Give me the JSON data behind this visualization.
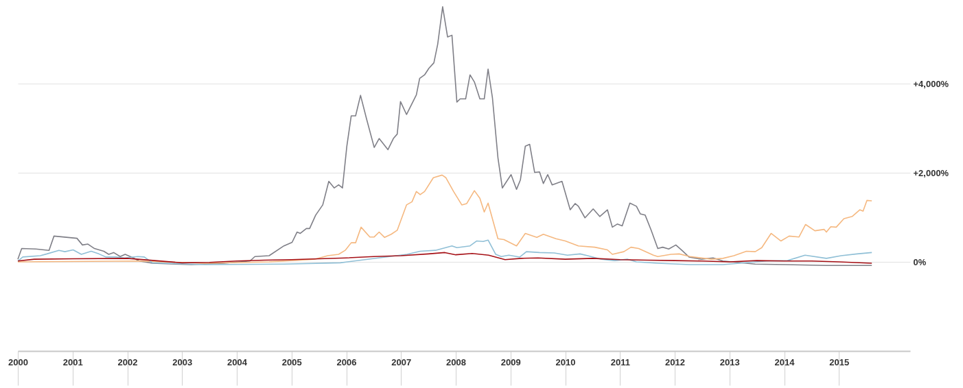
{
  "chart_data": {
    "type": "line",
    "xlim": [
      2000,
      2016.3
    ],
    "xticks": [
      2000,
      2001,
      2002,
      2003,
      2004,
      2005,
      2006,
      2007,
      2008,
      2009,
      2010,
      2011,
      2012,
      2013,
      2014,
      2015
    ],
    "ylim": [
      -2000,
      5850
    ],
    "yticks": [
      {
        "value": 0,
        "label": "0%"
      },
      {
        "value": 2000,
        "label": "+2,000%"
      },
      {
        "value": 4000,
        "label": "+4,000%"
      }
    ],
    "grid": "y",
    "marker": "none",
    "line_style": "solid",
    "series": [
      {
        "color": "#7f7f87",
        "x": [
          2000.0,
          2000.07,
          2000.33,
          2000.57,
          2000.66,
          2001.08,
          2001.18,
          2001.28,
          2001.4,
          2001.57,
          2001.66,
          2001.75,
          2001.87,
          2001.96,
          2002.11,
          2002.22,
          2002.46,
          2003.17,
          2003.76,
          2004.24,
          2004.33,
          2004.59,
          2004.86,
          2005.01,
          2005.1,
          2005.16,
          2005.27,
          2005.33,
          2005.44,
          2005.57,
          2005.68,
          2005.78,
          2005.86,
          2005.93,
          2006.01,
          2006.09,
          2006.17,
          2006.26,
          2006.37,
          2006.51,
          2006.6,
          2006.76,
          2006.86,
          2006.93,
          2006.99,
          2007.1,
          2007.28,
          2007.34,
          2007.43,
          2007.51,
          2007.6,
          2007.67,
          2007.76,
          2007.85,
          2007.93,
          2008.02,
          2008.08,
          2008.18,
          2008.26,
          2008.34,
          2008.44,
          2008.52,
          2008.59,
          2008.67,
          2008.77,
          2008.85,
          2009.01,
          2009.11,
          2009.18,
          2009.27,
          2009.35,
          2009.44,
          2009.53,
          2009.6,
          2009.68,
          2009.76,
          2009.94,
          2010.09,
          2010.18,
          2010.24,
          2010.36,
          2010.51,
          2010.63,
          2010.77,
          2010.86,
          2010.95,
          2011.04,
          2011.18,
          2011.3,
          2011.37,
          2011.46,
          2011.57,
          2011.69,
          2011.78,
          2011.89,
          2012.02,
          2012.13,
          2012.26,
          2012.49,
          2012.7,
          2012.88,
          2013.47,
          2014.02,
          2014.77,
          2015.6
        ],
        "values": [
          60,
          300,
          290,
          260,
          580,
          530,
          380,
          400,
          300,
          240,
          170,
          210,
          120,
          170,
          90,
          20,
          -30,
          -60,
          -30,
          20,
          120,
          140,
          360,
          440,
          670,
          640,
          750,
          750,
          1050,
          1280,
          1810,
          1660,
          1730,
          1660,
          2600,
          3280,
          3280,
          3740,
          3210,
          2570,
          2770,
          2520,
          2770,
          2870,
          3600,
          3310,
          3750,
          4120,
          4200,
          4350,
          4470,
          4890,
          5730,
          5050,
          5090,
          3590,
          3660,
          3660,
          4200,
          4040,
          3660,
          3660,
          4330,
          3680,
          2340,
          1660,
          1960,
          1630,
          1840,
          2600,
          2640,
          2010,
          2020,
          1760,
          1960,
          1730,
          1810,
          1170,
          1310,
          1250,
          990,
          1190,
          1020,
          1170,
          780,
          850,
          810,
          1320,
          1250,
          1080,
          1050,
          710,
          300,
          330,
          290,
          380,
          260,
          110,
          60,
          90,
          20,
          -50,
          -60,
          -80,
          -80
        ]
      },
      {
        "color": "#f5b880",
        "x": [
          2000.0,
          2002.22,
          2003.41,
          2004.59,
          2005.42,
          2005.66,
          2005.86,
          2005.98,
          2006.09,
          2006.17,
          2006.27,
          2006.43,
          2006.51,
          2006.6,
          2006.7,
          2006.82,
          2006.93,
          2007.1,
          2007.2,
          2007.28,
          2007.35,
          2007.43,
          2007.59,
          2007.75,
          2007.82,
          2007.96,
          2008.11,
          2008.2,
          2008.34,
          2008.44,
          2008.52,
          2008.59,
          2008.77,
          2008.88,
          2009.11,
          2009.27,
          2009.48,
          2009.6,
          2009.83,
          2010.0,
          2010.24,
          2010.54,
          2010.77,
          2010.86,
          2011.07,
          2011.2,
          2011.34,
          2011.61,
          2011.69,
          2011.93,
          2012.08,
          2012.28,
          2012.67,
          2012.88,
          2013.08,
          2013.31,
          2013.47,
          2013.59,
          2013.76,
          2013.94,
          2014.09,
          2014.27,
          2014.39,
          2014.56,
          2014.73,
          2014.77,
          2014.85,
          2014.95,
          2015.09,
          2015.24,
          2015.38,
          2015.44,
          2015.51,
          2015.6
        ],
        "values": [
          0,
          20,
          -30,
          0,
          60,
          140,
          170,
          260,
          430,
          430,
          780,
          560,
          560,
          670,
          550,
          620,
          710,
          1280,
          1350,
          1580,
          1510,
          1580,
          1890,
          1950,
          1890,
          1580,
          1280,
          1310,
          1600,
          1430,
          1120,
          1320,
          520,
          500,
          360,
          640,
          550,
          620,
          520,
          470,
          360,
          330,
          270,
          170,
          230,
          330,
          300,
          150,
          120,
          170,
          180,
          120,
          60,
          80,
          140,
          240,
          230,
          320,
          640,
          470,
          580,
          560,
          840,
          700,
          730,
          670,
          790,
          780,
          970,
          1020,
          1170,
          1140,
          1380,
          1370
        ]
      },
      {
        "color": "#8fbfd6",
        "x": [
          2000.0,
          2000.09,
          2000.41,
          2000.53,
          2000.75,
          2000.86,
          2001.01,
          2001.16,
          2001.34,
          2001.48,
          2001.61,
          2001.79,
          2001.95,
          2002.19,
          2002.31,
          2002.46,
          2003.41,
          2004.86,
          2005.89,
          2007.11,
          2007.35,
          2007.63,
          2007.93,
          2008.02,
          2008.26,
          2008.38,
          2008.5,
          2008.59,
          2008.73,
          2008.83,
          2008.97,
          2009.17,
          2009.29,
          2009.53,
          2009.8,
          2010.04,
          2010.27,
          2010.41,
          2010.66,
          2010.9,
          2011.14,
          2011.3,
          2011.69,
          2012.28,
          2012.88,
          2013.67,
          2014.06,
          2014.38,
          2014.77,
          2015.04,
          2015.33,
          2015.6
        ],
        "values": [
          20,
          110,
          140,
          180,
          260,
          230,
          270,
          170,
          240,
          180,
          110,
          110,
          90,
          120,
          110,
          -20,
          -60,
          -50,
          -20,
          170,
          240,
          260,
          360,
          320,
          360,
          470,
          460,
          490,
          170,
          120,
          150,
          110,
          230,
          210,
          200,
          150,
          180,
          140,
          60,
          30,
          60,
          0,
          -30,
          -60,
          -60,
          20,
          30,
          150,
          80,
          140,
          180,
          210
        ]
      },
      {
        "color": "#a50f15",
        "x": [
          2000.0,
          2000.3,
          2001.0,
          2002.0,
          2002.5,
          2003.0,
          2003.5,
          2004.0,
          2004.5,
          2005.0,
          2005.5,
          2006.0,
          2006.5,
          2007.0,
          2007.5,
          2007.8,
          2008.0,
          2008.3,
          2008.6,
          2008.9,
          2009.2,
          2009.5,
          2010.0,
          2010.5,
          2011.0,
          2011.5,
          2012.0,
          2012.5,
          2013.0,
          2013.5,
          2014.0,
          2014.5,
          2015.0,
          2015.6
        ],
        "values": [
          20,
          60,
          70,
          80,
          30,
          -20,
          -10,
          20,
          40,
          50,
          70,
          90,
          120,
          140,
          180,
          210,
          160,
          190,
          150,
          50,
          80,
          90,
          60,
          80,
          50,
          40,
          30,
          20,
          0,
          30,
          20,
          20,
          0,
          -30
        ]
      }
    ]
  }
}
